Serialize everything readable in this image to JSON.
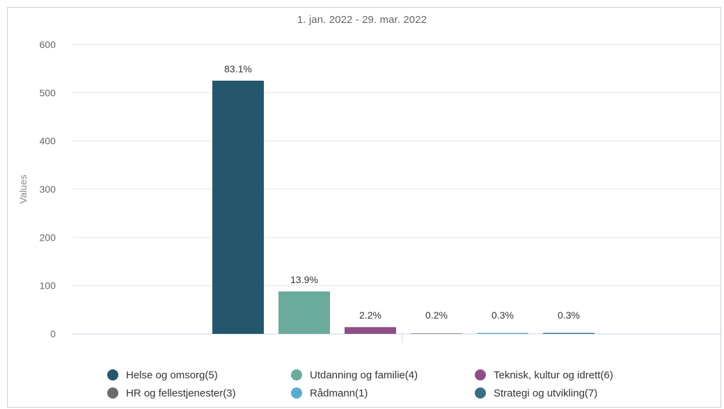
{
  "chart_data": {
    "type": "bar",
    "title": "1. jan. 2022 - 29. mar. 2022",
    "ylabel": "Values",
    "xlabel": "",
    "ylim": [
      0,
      600
    ],
    "yticks": [
      0,
      100,
      200,
      300,
      400,
      500,
      600
    ],
    "grid": true,
    "legend_position": "bottom",
    "categories": [
      "Helse og omsorg(5)",
      "Utdanning og familie(4)",
      "Teknisk, kultur og idrett(6)",
      "HR og fellestjenester(3)",
      "Rådmann(1)",
      "Strategi og utvikling(7)"
    ],
    "values": [
      525,
      88,
      14,
      1,
      2,
      2
    ],
    "data_labels": [
      "83.1%",
      "13.9%",
      "2.2%",
      "0.2%",
      "0.3%",
      "0.3%"
    ],
    "colors": [
      "#24576b",
      "#6aab9c",
      "#8e4f88",
      "#6b6b6b",
      "#5aabd0",
      "#3a6e83"
    ]
  }
}
